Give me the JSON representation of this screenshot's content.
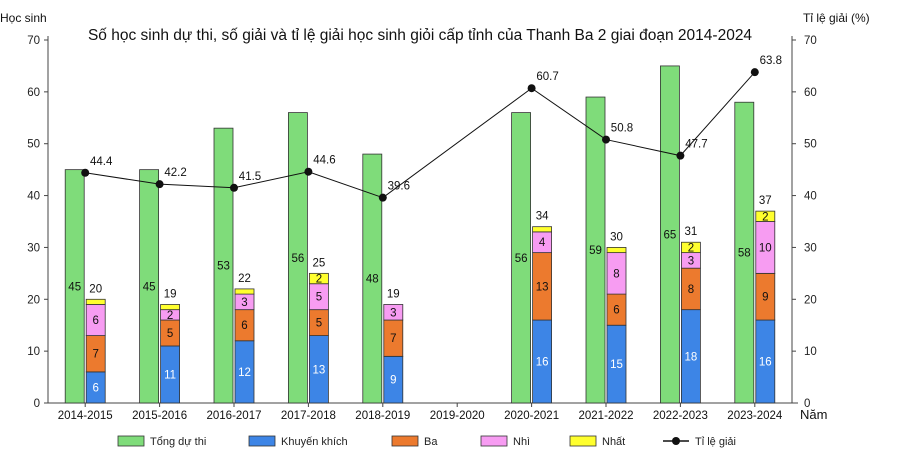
{
  "chart_data": {
    "type": "bar",
    "title": "Số học sinh dự thi, số giải và tỉ lệ giải học sinh giỏi cấp tỉnh của Thanh Ba 2 giai đoạn 2014-2024",
    "ylabel": "Học sinh",
    "y2label": "Tỉ lệ giải (%)",
    "xlabel": "Năm",
    "ylim": [
      0,
      70
    ],
    "y2lim": [
      0,
      70
    ],
    "yticks": [
      "0",
      "10",
      "20",
      "30",
      "40",
      "50",
      "60",
      "70"
    ],
    "y2ticks": [
      "0",
      "10",
      "20",
      "30",
      "40",
      "50",
      "60",
      "70"
    ],
    "grid": false,
    "legend_position": "bottom",
    "categories": [
      "2014-2015",
      "2015-2016",
      "2016-2017",
      "2017-2018",
      "2018-2019",
      "2019-2020",
      "2020-2021",
      "2021-2022",
      "2022-2023",
      "2023-2024"
    ],
    "participants": {
      "name": "Tổng dự thi",
      "color": "#7fdc7a",
      "values": [
        45,
        45,
        53,
        56,
        48,
        null,
        56,
        59,
        65,
        58
      ]
    },
    "awards": [
      {
        "name": "Khuyến khích",
        "color": "#3d85e6",
        "label_color": "#ffffff",
        "values": [
          6,
          11,
          12,
          13,
          9,
          null,
          16,
          15,
          18,
          16
        ]
      },
      {
        "name": "Ba",
        "color": "#ec7a2e",
        "label_color": "#111111",
        "values": [
          7,
          5,
          6,
          5,
          7,
          null,
          13,
          6,
          8,
          9
        ]
      },
      {
        "name": "Nhì",
        "color": "#f79cf2",
        "label_color": "#111111",
        "values": [
          6,
          2,
          3,
          5,
          3,
          null,
          4,
          8,
          3,
          10
        ]
      },
      {
        "name": "Nhất",
        "color": "#ffff2e",
        "label_color": "#111111",
        "values": [
          1,
          1,
          1,
          2,
          0,
          null,
          1,
          1,
          2,
          2
        ]
      }
    ],
    "award_totals": [
      20,
      19,
      22,
      25,
      19,
      null,
      34,
      30,
      31,
      37
    ],
    "rate": {
      "name": "Tỉ lệ giải",
      "color": "#111111",
      "values": [
        44.4,
        42.2,
        41.5,
        44.6,
        39.6,
        null,
        60.7,
        50.8,
        47.7,
        63.8
      ],
      "labels": [
        "44.4",
        "42.2",
        "41.5",
        "44.6",
        "39.6",
        null,
        "60.7",
        "50.8",
        "47.7",
        "63.8"
      ]
    },
    "legend": [
      "Tổng dự thi",
      "Khuyến khích",
      "Ba",
      "Nhì",
      "Nhất",
      "Tỉ lệ giải"
    ]
  }
}
